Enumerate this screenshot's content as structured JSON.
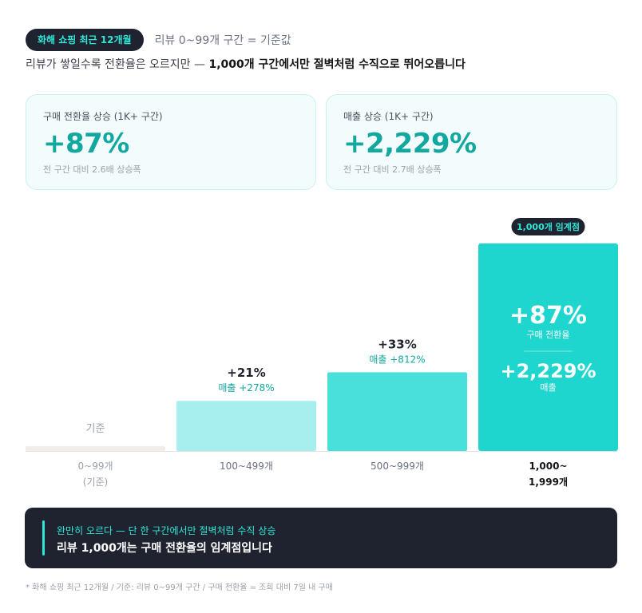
{
  "header": {
    "badge": "화해 쇼핑 최근 12개월",
    "note": "리뷰 0~99개 구간 = 기준값"
  },
  "headline": {
    "lead": "리뷰가 쌓일수록 전환율은 오르지만 — ",
    "emphasis": "1,000개 구간에서만 절벽처럼 수직으로 뛰어오릅니다"
  },
  "stats": [
    {
      "label": "구매 전환율 상승 (1K+ 구간)",
      "value": "+87%",
      "sub": "전 구간 대비 2.6배 상승폭"
    },
    {
      "label": "매출 상승 (1K+ 구간)",
      "value": "+2,229%",
      "sub": "전 구간 대비 2.7배 상승폭"
    }
  ],
  "chart_data": {
    "type": "bar",
    "title": "",
    "categories": [
      "0~99개 (기준)",
      "100~499개",
      "500~999개",
      "1,000~1,999개"
    ],
    "category_lines": [
      [
        "0~99개",
        "(기준)"
      ],
      [
        "100~499개"
      ],
      [
        "500~999개"
      ],
      [
        "1,000~",
        "1,999개"
      ]
    ],
    "series": [
      {
        "name": "구매 전환율",
        "values": [
          0,
          21,
          33,
          87
        ],
        "labels": [
          "기준",
          "+21%",
          "+33%",
          "+87%"
        ]
      },
      {
        "name": "매출",
        "values": [
          0,
          278,
          812,
          2229
        ],
        "labels": [
          "",
          "매출 +278%",
          "매출 +812%",
          "+2,229%"
        ]
      }
    ],
    "bar_basis": "구매 전환율",
    "highlight_index": 3,
    "highlight_badge": "1,000개 임계점",
    "highlight_sublabels": [
      "구매 전환율",
      "매출"
    ],
    "colors": [
      "#f1eeea",
      "#a7efee",
      "#49e0dc",
      "#1fd6cf"
    ],
    "text_colors": {
      "value": "#1f2330",
      "revenue": "#12a8a0",
      "muted": "#9aa0aa",
      "baseline": "#8a8f99"
    }
  },
  "callout": {
    "small": "완만히 오르다 — 단 한 구간에서만 절벽처럼 수직 상승",
    "big": "리뷰 1,000개는 구매 전환율의 임계점입니다"
  },
  "footnote": "* 화해 쇼핑 최근 12개월 / 기준: 리뷰 0~99개 구간 / 구매 전환율 = 조회 대비 7일 내 구매"
}
